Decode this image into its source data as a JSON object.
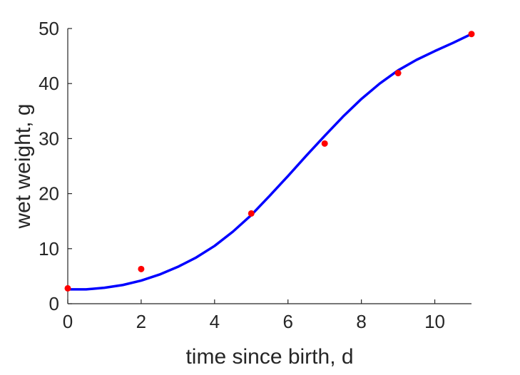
{
  "chart_data": {
    "type": "scatter",
    "title": "",
    "xlabel": "time since birth, d",
    "ylabel": "wet weight, g",
    "xlim": [
      0,
      11
    ],
    "ylim": [
      0,
      50
    ],
    "xticks": [
      0,
      2,
      4,
      6,
      8,
      10
    ],
    "yticks": [
      0,
      10,
      20,
      30,
      40,
      50
    ],
    "xtick_labels": [
      "0",
      "2",
      "4",
      "6",
      "8",
      "10"
    ],
    "ytick_labels": [
      "0",
      "10",
      "20",
      "30",
      "40",
      "50"
    ],
    "grid": false,
    "box": "left-bottom",
    "series": [
      {
        "kind": "points",
        "color": "#ff0000",
        "x": [
          0,
          2,
          5,
          7,
          9,
          11
        ],
        "y": [
          2.8,
          6.3,
          16.4,
          29.1,
          41.9,
          49.0
        ]
      },
      {
        "kind": "line",
        "color": "#0000ff",
        "x": [
          0,
          0.5,
          1,
          1.5,
          2,
          2.5,
          3,
          3.5,
          4,
          4.5,
          5,
          5.5,
          6,
          6.5,
          7,
          7.5,
          8,
          8.5,
          9,
          9.5,
          10,
          10.5,
          11
        ],
        "y": [
          2.6,
          2.6,
          2.9,
          3.4,
          4.2,
          5.3,
          6.7,
          8.4,
          10.5,
          13.1,
          16.1,
          19.6,
          23.2,
          26.9,
          30.5,
          34.0,
          37.2,
          40.0,
          42.4,
          44.3,
          45.9,
          47.4,
          49.0
        ]
      }
    ]
  }
}
